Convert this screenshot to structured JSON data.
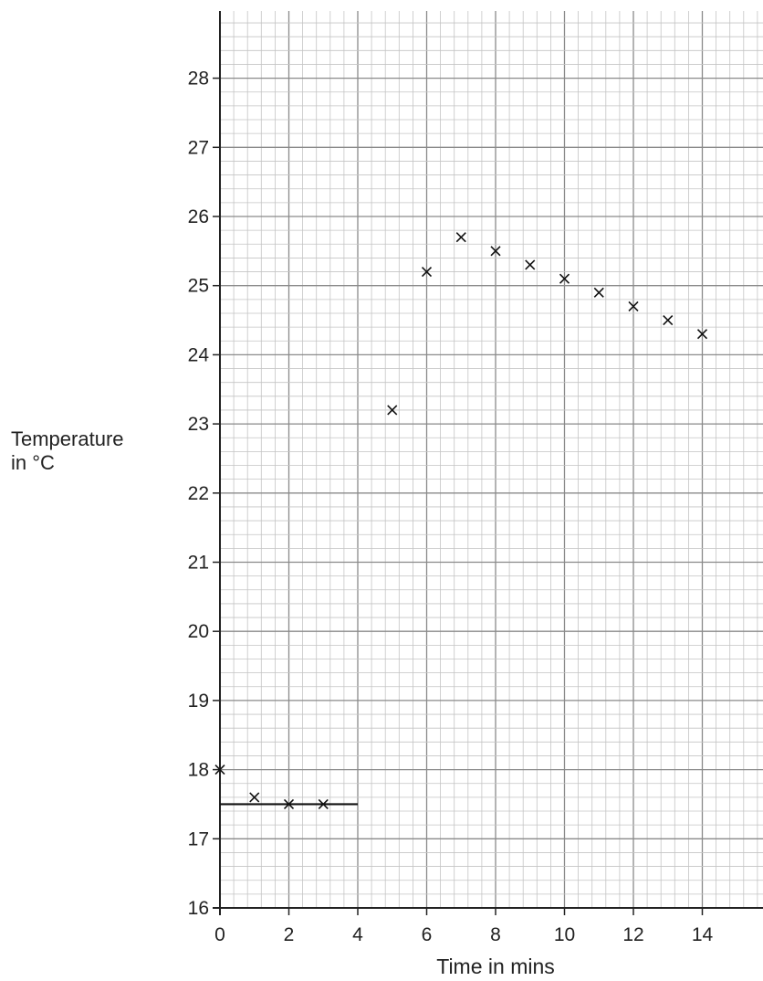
{
  "chart_data": {
    "type": "scatter",
    "title": "",
    "xlabel": "Time in mins",
    "ylabel_lines": [
      "Temperature",
      "in °C"
    ],
    "xlim": [
      0,
      15.8
    ],
    "ylim": [
      16,
      29
    ],
    "xticks": [
      0,
      2,
      4,
      6,
      8,
      10,
      12,
      14
    ],
    "yticks": [
      16,
      17,
      18,
      19,
      20,
      21,
      22,
      23,
      24,
      25,
      26,
      27,
      28
    ],
    "grid": true,
    "marker": "x",
    "series": [
      {
        "x": [
          0,
          1,
          2,
          3,
          5,
          6,
          7,
          8,
          9,
          10,
          11,
          12,
          13,
          14
        ],
        "y": [
          18.0,
          17.6,
          17.5,
          17.5,
          23.2,
          25.2,
          25.7,
          25.5,
          25.3,
          25.1,
          24.9,
          24.7,
          24.5,
          24.3
        ]
      }
    ],
    "lines": [
      {
        "x": [
          0,
          4
        ],
        "y": [
          17.5,
          17.5
        ]
      }
    ]
  }
}
